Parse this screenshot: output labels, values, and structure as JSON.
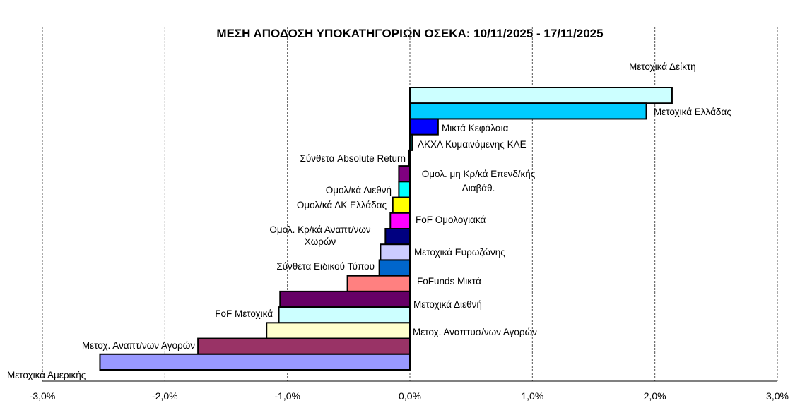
{
  "chart_data": {
    "type": "bar",
    "orientation": "horizontal",
    "title": "ΜΕΣΗ ΑΠΟΔΟΣΗ ΥΠΟΚΑΤΗΓΟΡΙΩΝ ΟΣΕΚΑ: 10/11/2025 - 17/11/2025",
    "xlabel": "",
    "ylabel": "",
    "xlim": [
      -3,
      3
    ],
    "x_ticks": [
      "-3,0%",
      "-2,0%",
      "-1,0%",
      "0,0%",
      "1,0%",
      "2,0%",
      "3,0%"
    ],
    "grid": "vertical dashed",
    "categories": [
      "Μετοχικά Δείκτη",
      "Μετοχικά Ελλάδας",
      "Μικτά Κεφάλαια",
      "ΑΚΧΑ Κυμαινόμενης ΚΑΕ",
      "Σύνθετα Absolute Return",
      "Ομολ. μη Κρ/κά Επενδ/κής Διαβάθ.",
      "Ομολ/κά Διεθνή",
      "Ομολ/κά ΛΚ Ελλάδας",
      "FoF Ομολογιακά",
      "Ομολ. Κρ/κά Αναπτ/νων Χωρών",
      "Μετοχικά Ευρωζώνης",
      "Σύνθετα Ειδικού Τύπου",
      "FoFunds Μικτά",
      "Μετοχικά Διεθνή",
      "FoF Μετοχικά",
      "Μετοχ. Αναπτυσ/νων Αγορών",
      "Μετοχ. Αναπτ/νων Αγορών",
      "Μετοχικά Αμερικής"
    ],
    "values": [
      2.14,
      1.93,
      0.23,
      0.02,
      -0.01,
      -0.09,
      -0.09,
      -0.14,
      -0.16,
      -0.2,
      -0.24,
      -0.25,
      -0.51,
      -1.06,
      -1.07,
      -1.17,
      -1.73,
      -2.53
    ],
    "colors": [
      "#ccffff",
      "#00ccff",
      "#0000ff",
      "#008080",
      "#ffffff",
      "#800080",
      "#00ffff",
      "#ffff00",
      "#ff00ff",
      "#000080",
      "#ccccff",
      "#0066cc",
      "#ff8080",
      "#660066",
      "#ccffff",
      "#ffffcc",
      "#993366",
      "#9999ff"
    ],
    "unit": "%"
  }
}
